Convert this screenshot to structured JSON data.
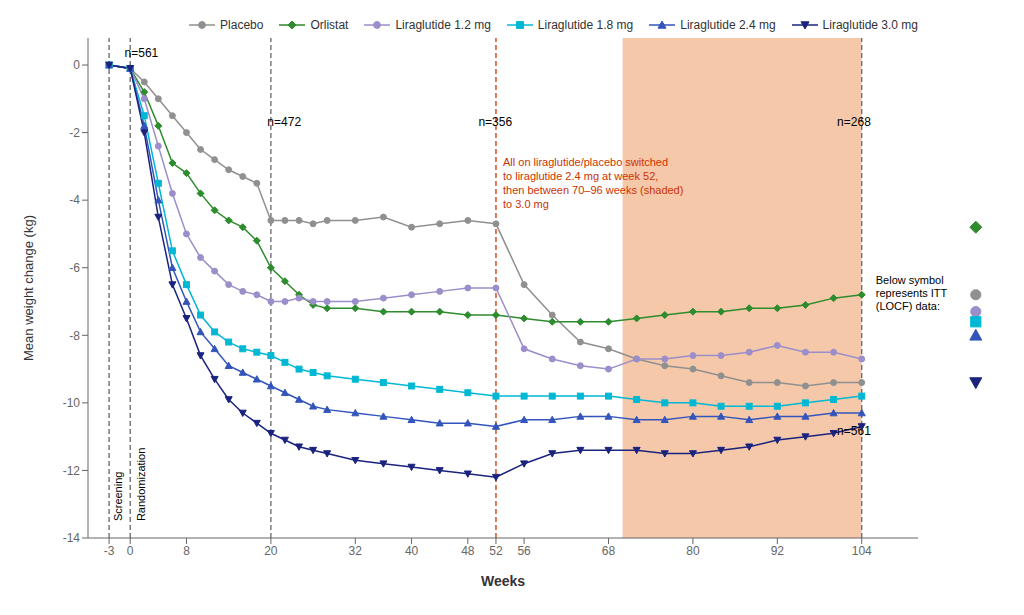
{
  "chart_data": {
    "type": "line",
    "x_label": "Weeks",
    "y_label": "Mean weight change (kg)",
    "xlim": [
      -6,
      112
    ],
    "ylim": [
      -14,
      0.8
    ],
    "xticks": [
      -3,
      0,
      8,
      20,
      32,
      40,
      48,
      52,
      56,
      68,
      80,
      92,
      104
    ],
    "yticks": [
      0,
      -2,
      -4,
      -6,
      -8,
      -10,
      -12,
      -14
    ],
    "grid": false,
    "legend": "upper right",
    "x": [
      -3,
      0,
      2,
      4,
      6,
      8,
      10,
      12,
      14,
      16,
      18,
      20,
      22,
      24,
      26,
      28,
      32,
      36,
      40,
      44,
      48,
      52,
      56,
      60,
      64,
      68,
      72,
      76,
      80,
      84,
      88,
      92,
      96,
      100,
      104
    ],
    "series": [
      {
        "name": "Placebo",
        "color": "#909090",
        "marker": "circle",
        "line_style": "solid",
        "values": [
          0,
          -0.1,
          -0.5,
          -1.0,
          -1.5,
          -2.0,
          -2.5,
          -2.8,
          -3.1,
          -3.3,
          -3.5,
          -4.6,
          -4.6,
          -4.6,
          -4.7,
          -4.6,
          -4.6,
          -4.5,
          -4.8,
          -4.7,
          -4.6,
          -4.7,
          -6.5,
          -7.4,
          -8.2,
          -8.4,
          -8.7,
          -8.9,
          -9.0,
          -9.2,
          -9.4,
          -9.4,
          -9.5,
          -9.4,
          -9.4
        ],
        "itt_value": -6.8
      },
      {
        "name": "Orlistat",
        "color": "#2d8c2d",
        "marker": "diamond",
        "line_style": "solid",
        "values": [
          0,
          -0.1,
          -0.8,
          -1.8,
          -2.9,
          -3.2,
          -3.8,
          -4.3,
          -4.6,
          -4.8,
          -5.2,
          -6.0,
          -6.4,
          -6.8,
          -7.1,
          -7.2,
          -7.2,
          -7.3,
          -7.3,
          -7.3,
          -7.4,
          -7.4,
          -7.5,
          -7.6,
          -7.6,
          -7.6,
          -7.5,
          -7.4,
          -7.3,
          -7.3,
          -7.2,
          -7.2,
          -7.1,
          -6.9,
          -6.8
        ],
        "itt_value": -4.8
      },
      {
        "name": "Liraglutide 1.2 mg",
        "color": "#9b8eca",
        "marker": "circle",
        "line_style": "solid",
        "values": [
          0,
          -0.1,
          -1.0,
          -2.4,
          -3.8,
          -5.0,
          -5.7,
          -6.1,
          -6.5,
          -6.7,
          -6.8,
          -7.0,
          -7.0,
          -6.9,
          -7.0,
          -7.0,
          -7.0,
          -6.9,
          -6.8,
          -6.7,
          -6.6,
          -6.6,
          -8.4,
          -8.7,
          -8.9,
          -9.0,
          -8.7,
          -8.7,
          -8.6,
          -8.6,
          -8.5,
          -8.3,
          -8.5,
          -8.5,
          -8.7
        ],
        "itt_value": -7.3
      },
      {
        "name": "Liraglutide 1.8 mg",
        "color": "#00b8d4",
        "marker": "square",
        "line_style": "solid",
        "values": [
          0,
          -0.1,
          -1.5,
          -3.5,
          -5.5,
          -6.5,
          -7.4,
          -7.9,
          -8.2,
          -8.4,
          -8.5,
          -8.6,
          -8.8,
          -9.0,
          -9.1,
          -9.2,
          -9.3,
          -9.4,
          -9.5,
          -9.6,
          -9.7,
          -9.8,
          -9.8,
          -9.8,
          -9.8,
          -9.8,
          -9.9,
          -10.0,
          -10.0,
          -10.1,
          -10.1,
          -10.1,
          -10.0,
          -9.9,
          -9.8
        ],
        "itt_value": -7.6
      },
      {
        "name": "Liraglutide 2.4 mg",
        "color": "#3355bb",
        "marker": "triangle-up",
        "line_style": "solid",
        "values": [
          0,
          -0.1,
          -1.8,
          -4.0,
          -6.0,
          -7.0,
          -7.9,
          -8.4,
          -8.9,
          -9.1,
          -9.3,
          -9.5,
          -9.7,
          -9.9,
          -10.1,
          -10.2,
          -10.3,
          -10.4,
          -10.5,
          -10.6,
          -10.6,
          -10.7,
          -10.5,
          -10.5,
          -10.4,
          -10.4,
          -10.5,
          -10.5,
          -10.4,
          -10.4,
          -10.5,
          -10.4,
          -10.4,
          -10.3,
          -10.3
        ],
        "itt_value": -8.0
      },
      {
        "name": "Liraglutide 3.0 mg",
        "color": "#1a237e",
        "marker": "triangle-down",
        "line_style": "solid",
        "values": [
          0,
          -0.1,
          -2.0,
          -4.5,
          -6.5,
          -7.5,
          -8.6,
          -9.3,
          -9.9,
          -10.3,
          -10.6,
          -10.9,
          -11.1,
          -11.3,
          -11.4,
          -11.5,
          -11.7,
          -11.8,
          -11.9,
          -12.0,
          -12.1,
          -12.2,
          -11.8,
          -11.5,
          -11.4,
          -11.4,
          -11.4,
          -11.5,
          -11.5,
          -11.4,
          -11.3,
          -11.1,
          -11.0,
          -10.9,
          -10.7
        ],
        "itt_value": -9.4
      }
    ],
    "shaded_region": {
      "from": 70,
      "to": 104,
      "color": "#f5c8aa"
    },
    "vertical_lines": [
      {
        "x": -3,
        "color": "#666666",
        "line_style": "dashed"
      },
      {
        "x": 0,
        "color": "#666666",
        "line_style": "dashed"
      },
      {
        "x": 20,
        "color": "#666666",
        "line_style": "dashed"
      },
      {
        "x": 104,
        "color": "#666666",
        "line_style": "dashed"
      },
      {
        "x": 52,
        "color": "#cc3300",
        "line_style": "dashed"
      }
    ],
    "annotations": [
      {
        "text": "n=561",
        "x": -0.8,
        "y": 0.18
      },
      {
        "text": "n=472",
        "x": 19.5,
        "y": -1.85
      },
      {
        "text": "n=356",
        "x": 49.5,
        "y": -1.85
      },
      {
        "text": "n=268",
        "x": 100.5,
        "y": -1.85
      },
      {
        "text": "n=561",
        "x": 100.5,
        "y": -11.0
      }
    ],
    "phase_labels": [
      {
        "text": "Screening",
        "x": -1.8,
        "y": -13.5
      },
      {
        "text": "Randomization",
        "x": 1.5,
        "y": -13.5
      }
    ],
    "note": {
      "text": "All on liraglutide/placebo switched\nto liraglutide 2.4 mg at week 52,\nthen between 70–96 weeks (shaded)\nto 3.0 mg",
      "color": "#cc3300",
      "x": 53.0,
      "y": -2.7
    },
    "itt_note": {
      "text": "Below symbol\nrepresents ITT\n(LOCF) data:",
      "x": 106.0,
      "y": -6.2
    }
  }
}
